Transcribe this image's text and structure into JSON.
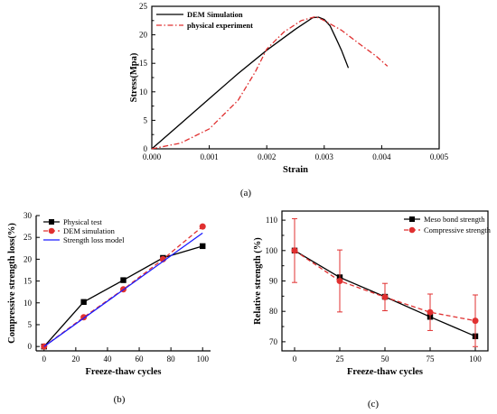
{
  "chart_data": [
    {
      "type": "line",
      "panel": "(a)",
      "xlabel": "Strain",
      "ylabel": "Stress(Mpa)",
      "xlim": [
        0,
        0.005
      ],
      "ylim": [
        0,
        25
      ],
      "xticks": [
        "0.000",
        "0.001",
        "0.002",
        "0.003",
        "0.004",
        "0.005"
      ],
      "yticks": [
        "0",
        "5",
        "10",
        "15",
        "20",
        "25"
      ],
      "legend_position": "top-left",
      "series": [
        {
          "name": "DEM Simulation",
          "color": "#000000",
          "style": "solid",
          "points": [
            [
              0.0,
              0.0
            ],
            [
              0.0005,
              4.4
            ],
            [
              0.001,
              8.8
            ],
            [
              0.0015,
              13.2
            ],
            [
              0.002,
              17.3
            ],
            [
              0.0025,
              21.0
            ],
            [
              0.0028,
              23.0
            ],
            [
              0.0029,
              23.1
            ],
            [
              0.003,
              22.7
            ],
            [
              0.0031,
              21.6
            ],
            [
              0.0032,
              19.5
            ],
            [
              0.0033,
              17.3
            ],
            [
              0.00342,
              14.2
            ]
          ]
        },
        {
          "name": "physical experiment",
          "color": "#e03030",
          "style": "dashdot",
          "points": [
            [
              0.0,
              0.0
            ],
            [
              0.0005,
              1.0
            ],
            [
              0.001,
              3.5
            ],
            [
              0.0015,
              8.5
            ],
            [
              0.0018,
              13.5
            ],
            [
              0.002,
              17.5
            ],
            [
              0.0023,
              20.5
            ],
            [
              0.0026,
              22.5
            ],
            [
              0.00285,
              23.2
            ],
            [
              0.003,
              22.5
            ],
            [
              0.0033,
              20.8
            ],
            [
              0.0036,
              18.5
            ],
            [
              0.0039,
              16.3
            ],
            [
              0.0041,
              14.5
            ]
          ]
        }
      ]
    },
    {
      "type": "line",
      "panel": "(b)",
      "xlabel": "Freeze-thaw cycles",
      "ylabel": "Compressive strength loss(%)",
      "xlim": [
        -5,
        105
      ],
      "ylim": [
        -1,
        30
      ],
      "xticks": [
        "0",
        "20",
        "40",
        "60",
        "80",
        "100"
      ],
      "yticks": [
        "0",
        "5",
        "10",
        "15",
        "20",
        "25",
        "30"
      ],
      "legend_position": "top-left",
      "series": [
        {
          "name": "Physical test",
          "color": "#000000",
          "style": "solid",
          "marker": "square",
          "x": [
            0,
            25,
            50,
            75,
            100
          ],
          "values": [
            0,
            10.2,
            15.2,
            20.3,
            23.0
          ]
        },
        {
          "name": "DEM simulation",
          "color": "#e03030",
          "style": "dashed",
          "marker": "circle",
          "x": [
            0,
            25,
            50,
            75,
            100
          ],
          "values": [
            0,
            6.7,
            13.1,
            20.0,
            27.5
          ]
        },
        {
          "name": "Strength loss model",
          "color": "#1a1aff",
          "style": "solid",
          "marker": "none",
          "x": [
            0,
            100
          ],
          "values": [
            0,
            26.0
          ]
        }
      ]
    },
    {
      "type": "line",
      "panel": "(c)",
      "xlabel": "Freeze-thaw cycles",
      "ylabel": "Relative strength (%)",
      "xlim": [
        -7,
        107
      ],
      "ylim": [
        67,
        113
      ],
      "xticks": [
        "0",
        "25",
        "50",
        "75",
        "100"
      ],
      "yticks": [
        "70",
        "80",
        "90",
        "100",
        "110"
      ],
      "legend_position": "top-right",
      "series": [
        {
          "name": "Meso bond strength",
          "color": "#000000",
          "style": "solid",
          "marker": "square",
          "x": [
            0,
            25,
            50,
            75,
            100
          ],
          "values": [
            100,
            91.2,
            84.8,
            78.2,
            71.8
          ]
        },
        {
          "name": "Compressive strength",
          "color": "#e03030",
          "style": "dashed",
          "marker": "circle",
          "x": [
            0,
            25,
            50,
            75,
            100
          ],
          "values": [
            100,
            90.0,
            84.7,
            79.7,
            76.9
          ],
          "error": [
            10.5,
            10.2,
            4.5,
            6.0,
            8.5
          ]
        }
      ]
    }
  ],
  "captions": {
    "a": "(a)",
    "b": "(b)",
    "c": "(c)"
  }
}
